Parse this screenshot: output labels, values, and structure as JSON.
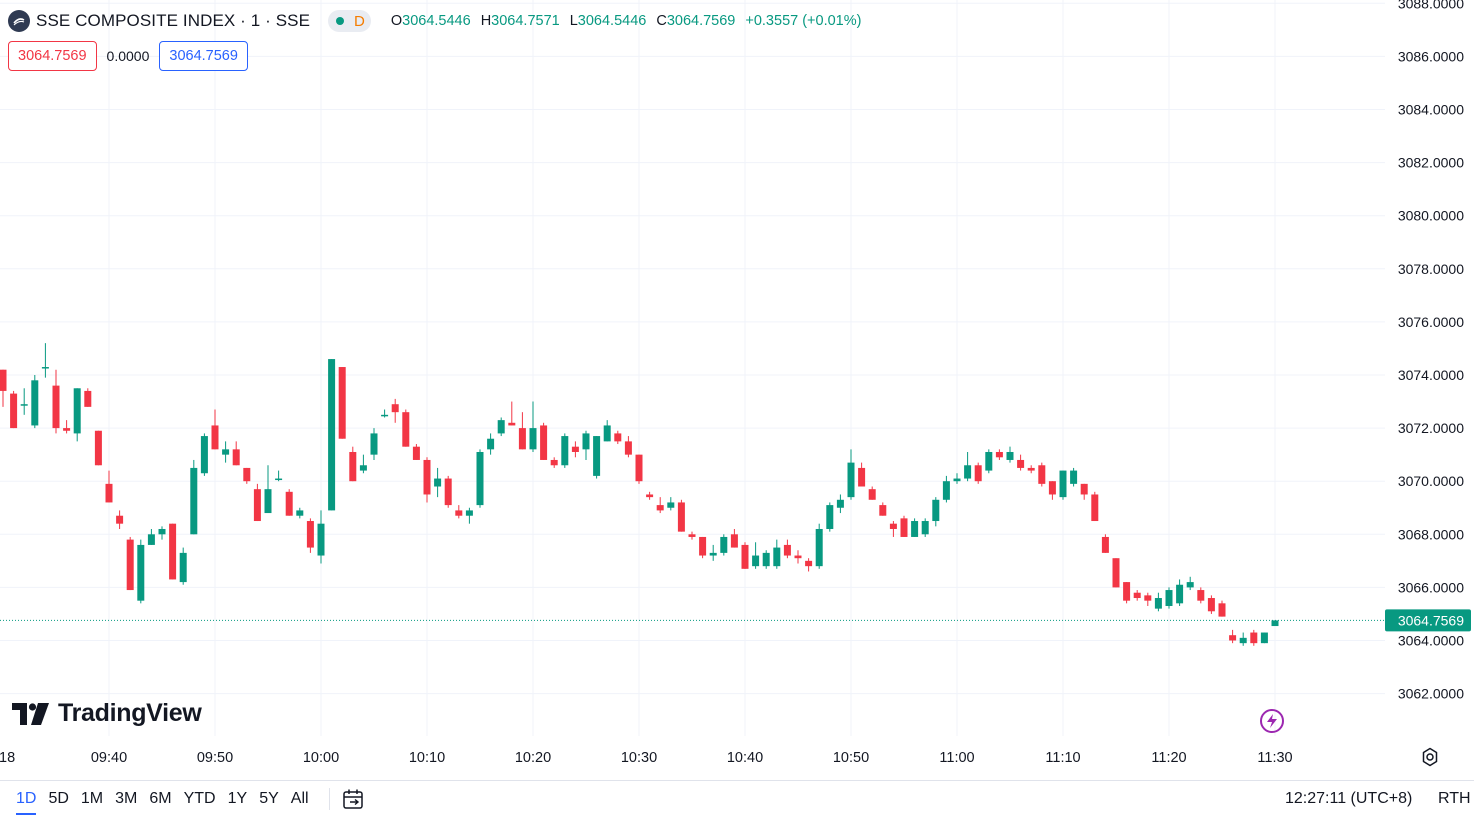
{
  "header": {
    "symbol_title": "SSE COMPOSITE INDEX · 1 · SSE",
    "status_letter": "D",
    "ohlc": [
      {
        "key": "O",
        "value": "3064.5446"
      },
      {
        "key": "H",
        "value": "3064.7571"
      },
      {
        "key": "L",
        "value": "3064.5446"
      },
      {
        "key": "C",
        "value": "3064.7569"
      }
    ],
    "change": "+0.3557 (+0.01%)"
  },
  "quote": {
    "bid": "3064.7569",
    "spread": "0.0000",
    "ask": "3064.7569"
  },
  "branding": {
    "watermark": "TradingView"
  },
  "toolbar": {
    "ranges": [
      "1D",
      "5D",
      "1M",
      "3M",
      "6M",
      "YTD",
      "1Y",
      "5Y",
      "All"
    ],
    "active_range": "1D",
    "clock": "12:27:11 (UTC+8)",
    "session": "RTH"
  },
  "colors": {
    "up": "#089981",
    "down": "#f23645",
    "grid": "#f0f3fa",
    "last_price_line": "#089981"
  },
  "icons": {
    "logo": "sse-logo-icon",
    "flash": "flash-icon",
    "settings": "settings-gear-icon",
    "calendar": "calendar-range-icon"
  },
  "chart_data": {
    "type": "candlestick",
    "interval_minutes": 1,
    "y_ticks": [
      "3062.0000",
      "3064.0000",
      "3066.0000",
      "3068.0000",
      "3070.0000",
      "3072.0000",
      "3074.0000",
      "3076.0000",
      "3078.0000",
      "3080.0000",
      "3082.0000",
      "3084.0000",
      "3086.0000",
      "3088.0000"
    ],
    "ylim": [
      3061.2,
      3088.2
    ],
    "x_ticks": [
      "18",
      "09:40",
      "09:50",
      "10:00",
      "10:10",
      "10:20",
      "10:30",
      "10:40",
      "10:50",
      "11:00",
      "11:10",
      "11:20",
      "11:30"
    ],
    "last_price": "3064.7569",
    "grid": true,
    "candles": [
      {
        "t": "09:30",
        "o": 3074.2,
        "h": 3074.2,
        "l": 3072.8,
        "c": 3073.4
      },
      {
        "t": "09:31",
        "o": 3073.3,
        "h": 3073.4,
        "l": 3072.0,
        "c": 3072.0
      },
      {
        "t": "09:32",
        "o": 3072.9,
        "h": 3073.5,
        "l": 3072.5,
        "c": 3072.9
      },
      {
        "t": "09:33",
        "o": 3072.1,
        "h": 3074.0,
        "l": 3072.0,
        "c": 3073.8
      },
      {
        "t": "09:34",
        "o": 3074.3,
        "h": 3075.2,
        "l": 3073.9,
        "c": 3074.3
      },
      {
        "t": "09:35",
        "o": 3073.6,
        "h": 3074.2,
        "l": 3071.8,
        "c": 3072.0
      },
      {
        "t": "09:36",
        "o": 3072.0,
        "h": 3072.3,
        "l": 3071.8,
        "c": 3071.9
      },
      {
        "t": "09:37",
        "o": 3071.8,
        "h": 3073.5,
        "l": 3071.5,
        "c": 3073.5
      },
      {
        "t": "09:38",
        "o": 3073.4,
        "h": 3073.5,
        "l": 3072.8,
        "c": 3072.8
      },
      {
        "t": "09:39",
        "o": 3071.9,
        "h": 3071.9,
        "l": 3070.6,
        "c": 3070.6
      },
      {
        "t": "09:40",
        "o": 3069.9,
        "h": 3070.4,
        "l": 3069.2,
        "c": 3069.2
      },
      {
        "t": "09:41",
        "o": 3068.7,
        "h": 3068.9,
        "l": 3068.2,
        "c": 3068.4
      },
      {
        "t": "09:42",
        "o": 3067.8,
        "h": 3067.9,
        "l": 3065.9,
        "c": 3065.9
      },
      {
        "t": "09:43",
        "o": 3065.5,
        "h": 3067.8,
        "l": 3065.4,
        "c": 3067.6
      },
      {
        "t": "09:44",
        "o": 3067.6,
        "h": 3068.2,
        "l": 3067.6,
        "c": 3068.0
      },
      {
        "t": "09:45",
        "o": 3068.0,
        "h": 3068.3,
        "l": 3067.8,
        "c": 3068.2
      },
      {
        "t": "09:46",
        "o": 3068.4,
        "h": 3068.4,
        "l": 3066.3,
        "c": 3066.3
      },
      {
        "t": "09:47",
        "o": 3066.2,
        "h": 3067.5,
        "l": 3066.1,
        "c": 3067.3
      },
      {
        "t": "09:48",
        "o": 3068.0,
        "h": 3070.8,
        "l": 3068.0,
        "c": 3070.5
      },
      {
        "t": "09:49",
        "o": 3070.3,
        "h": 3071.8,
        "l": 3070.2,
        "c": 3071.7
      },
      {
        "t": "09:50",
        "o": 3072.1,
        "h": 3072.7,
        "l": 3071.2,
        "c": 3071.2
      },
      {
        "t": "09:51",
        "o": 3071.0,
        "h": 3071.5,
        "l": 3070.7,
        "c": 3071.2
      },
      {
        "t": "09:52",
        "o": 3071.2,
        "h": 3071.5,
        "l": 3070.6,
        "c": 3070.6
      },
      {
        "t": "09:53",
        "o": 3070.5,
        "h": 3070.5,
        "l": 3069.9,
        "c": 3070.0
      },
      {
        "t": "09:54",
        "o": 3069.7,
        "h": 3069.9,
        "l": 3068.5,
        "c": 3068.5
      },
      {
        "t": "09:55",
        "o": 3068.8,
        "h": 3070.6,
        "l": 3068.8,
        "c": 3069.7
      },
      {
        "t": "09:56",
        "o": 3070.1,
        "h": 3070.4,
        "l": 3070.0,
        "c": 3070.1
      },
      {
        "t": "09:57",
        "o": 3069.6,
        "h": 3069.7,
        "l": 3068.7,
        "c": 3068.7
      },
      {
        "t": "09:58",
        "o": 3068.7,
        "h": 3069.0,
        "l": 3068.6,
        "c": 3068.9
      },
      {
        "t": "09:59",
        "o": 3068.5,
        "h": 3068.6,
        "l": 3067.3,
        "c": 3067.5
      },
      {
        "t": "10:00",
        "o": 3067.2,
        "h": 3068.9,
        "l": 3066.9,
        "c": 3068.4
      },
      {
        "t": "10:01",
        "o": 3068.9,
        "h": 3074.6,
        "l": 3068.9,
        "c": 3074.6
      },
      {
        "t": "10:02",
        "o": 3074.3,
        "h": 3074.3,
        "l": 3071.6,
        "c": 3071.6
      },
      {
        "t": "10:03",
        "o": 3071.1,
        "h": 3071.3,
        "l": 3070.0,
        "c": 3070.0
      },
      {
        "t": "10:04",
        "o": 3070.4,
        "h": 3071.0,
        "l": 3070.3,
        "c": 3070.6
      },
      {
        "t": "10:05",
        "o": 3071.0,
        "h": 3072.0,
        "l": 3070.8,
        "c": 3071.8
      },
      {
        "t": "10:06",
        "o": 3072.5,
        "h": 3072.7,
        "l": 3072.4,
        "c": 3072.5
      },
      {
        "t": "10:07",
        "o": 3072.9,
        "h": 3073.1,
        "l": 3072.2,
        "c": 3072.6
      },
      {
        "t": "10:08",
        "o": 3072.6,
        "h": 3072.7,
        "l": 3071.3,
        "c": 3071.3
      },
      {
        "t": "10:09",
        "o": 3071.3,
        "h": 3071.4,
        "l": 3070.8,
        "c": 3070.8
      },
      {
        "t": "10:10",
        "o": 3070.8,
        "h": 3070.9,
        "l": 3069.2,
        "c": 3069.5
      },
      {
        "t": "10:11",
        "o": 3069.8,
        "h": 3070.5,
        "l": 3069.4,
        "c": 3070.1
      },
      {
        "t": "10:12",
        "o": 3070.1,
        "h": 3070.2,
        "l": 3069.0,
        "c": 3069.1
      },
      {
        "t": "10:13",
        "o": 3068.9,
        "h": 3069.1,
        "l": 3068.6,
        "c": 3068.7
      },
      {
        "t": "10:14",
        "o": 3068.7,
        "h": 3069.0,
        "l": 3068.4,
        "c": 3068.9
      },
      {
        "t": "10:15",
        "o": 3069.1,
        "h": 3071.2,
        "l": 3069.0,
        "c": 3071.1
      },
      {
        "t": "10:16",
        "o": 3071.2,
        "h": 3071.8,
        "l": 3071.0,
        "c": 3071.6
      },
      {
        "t": "10:17",
        "o": 3071.8,
        "h": 3072.4,
        "l": 3071.7,
        "c": 3072.3
      },
      {
        "t": "10:18",
        "o": 3072.2,
        "h": 3073.0,
        "l": 3072.1,
        "c": 3072.1
      },
      {
        "t": "10:19",
        "o": 3072.0,
        "h": 3072.6,
        "l": 3071.2,
        "c": 3071.2
      },
      {
        "t": "10:20",
        "o": 3071.2,
        "h": 3073.0,
        "l": 3071.1,
        "c": 3072.0
      },
      {
        "t": "10:21",
        "o": 3072.1,
        "h": 3072.2,
        "l": 3070.8,
        "c": 3070.8
      },
      {
        "t": "10:22",
        "o": 3070.8,
        "h": 3070.9,
        "l": 3070.5,
        "c": 3070.6
      },
      {
        "t": "10:23",
        "o": 3070.6,
        "h": 3071.8,
        "l": 3070.5,
        "c": 3071.7
      },
      {
        "t": "10:24",
        "o": 3071.3,
        "h": 3071.5,
        "l": 3070.9,
        "c": 3071.1
      },
      {
        "t": "10:25",
        "o": 3071.2,
        "h": 3071.9,
        "l": 3070.8,
        "c": 3071.8
      },
      {
        "t": "10:26",
        "o": 3070.2,
        "h": 3071.7,
        "l": 3070.1,
        "c": 3071.7
      },
      {
        "t": "10:27",
        "o": 3071.5,
        "h": 3072.3,
        "l": 3071.5,
        "c": 3072.1
      },
      {
        "t": "10:28",
        "o": 3071.8,
        "h": 3071.9,
        "l": 3071.4,
        "c": 3071.5
      },
      {
        "t": "10:29",
        "o": 3071.5,
        "h": 3071.7,
        "l": 3070.9,
        "c": 3071.0
      },
      {
        "t": "10:30",
        "o": 3071.0,
        "h": 3071.0,
        "l": 3069.9,
        "c": 3070.0
      },
      {
        "t": "10:31",
        "o": 3069.5,
        "h": 3069.6,
        "l": 3069.3,
        "c": 3069.4
      },
      {
        "t": "10:32",
        "o": 3069.1,
        "h": 3069.4,
        "l": 3068.8,
        "c": 3068.9
      },
      {
        "t": "10:33",
        "o": 3069.0,
        "h": 3069.4,
        "l": 3068.9,
        "c": 3069.2
      },
      {
        "t": "10:34",
        "o": 3069.2,
        "h": 3069.3,
        "l": 3068.1,
        "c": 3068.1
      },
      {
        "t": "10:35",
        "o": 3068.0,
        "h": 3068.1,
        "l": 3067.8,
        "c": 3067.9
      },
      {
        "t": "10:36",
        "o": 3067.9,
        "h": 3067.9,
        "l": 3067.1,
        "c": 3067.2
      },
      {
        "t": "10:37",
        "o": 3067.2,
        "h": 3067.6,
        "l": 3067.0,
        "c": 3067.3
      },
      {
        "t": "10:38",
        "o": 3067.3,
        "h": 3068.0,
        "l": 3067.2,
        "c": 3067.9
      },
      {
        "t": "10:39",
        "o": 3068.0,
        "h": 3068.2,
        "l": 3067.5,
        "c": 3067.5
      },
      {
        "t": "10:40",
        "o": 3067.6,
        "h": 3067.7,
        "l": 3066.7,
        "c": 3066.7
      },
      {
        "t": "10:41",
        "o": 3066.8,
        "h": 3067.7,
        "l": 3066.7,
        "c": 3067.2
      },
      {
        "t": "10:42",
        "o": 3066.8,
        "h": 3067.4,
        "l": 3066.7,
        "c": 3067.3
      },
      {
        "t": "10:43",
        "o": 3066.8,
        "h": 3067.8,
        "l": 3066.7,
        "c": 3067.5
      },
      {
        "t": "10:44",
        "o": 3067.6,
        "h": 3067.8,
        "l": 3067.1,
        "c": 3067.2
      },
      {
        "t": "10:45",
        "o": 3067.2,
        "h": 3067.4,
        "l": 3066.9,
        "c": 3067.1
      },
      {
        "t": "10:46",
        "o": 3067.0,
        "h": 3067.1,
        "l": 3066.6,
        "c": 3066.8
      },
      {
        "t": "10:47",
        "o": 3066.8,
        "h": 3068.4,
        "l": 3066.7,
        "c": 3068.2
      },
      {
        "t": "10:48",
        "o": 3068.2,
        "h": 3069.2,
        "l": 3068.1,
        "c": 3069.1
      },
      {
        "t": "10:49",
        "o": 3069.0,
        "h": 3069.5,
        "l": 3068.8,
        "c": 3069.3
      },
      {
        "t": "10:50",
        "o": 3069.4,
        "h": 3071.2,
        "l": 3069.3,
        "c": 3070.7
      },
      {
        "t": "10:51",
        "o": 3070.5,
        "h": 3070.7,
        "l": 3069.8,
        "c": 3069.8
      },
      {
        "t": "10:52",
        "o": 3069.7,
        "h": 3069.8,
        "l": 3069.3,
        "c": 3069.3
      },
      {
        "t": "10:53",
        "o": 3069.1,
        "h": 3069.2,
        "l": 3068.7,
        "c": 3068.7
      },
      {
        "t": "10:54",
        "o": 3068.4,
        "h": 3068.5,
        "l": 3067.9,
        "c": 3068.2
      },
      {
        "t": "10:55",
        "o": 3068.6,
        "h": 3068.7,
        "l": 3067.9,
        "c": 3067.9
      },
      {
        "t": "10:56",
        "o": 3067.9,
        "h": 3068.6,
        "l": 3067.9,
        "c": 3068.5
      },
      {
        "t": "10:57",
        "o": 3068.0,
        "h": 3068.6,
        "l": 3067.9,
        "c": 3068.5
      },
      {
        "t": "10:58",
        "o": 3068.5,
        "h": 3069.4,
        "l": 3068.3,
        "c": 3069.3
      },
      {
        "t": "10:59",
        "o": 3069.3,
        "h": 3070.2,
        "l": 3069.2,
        "c": 3070.0
      },
      {
        "t": "11:00",
        "o": 3070.0,
        "h": 3070.3,
        "l": 3069.9,
        "c": 3070.1
      },
      {
        "t": "11:01",
        "o": 3070.1,
        "h": 3071.1,
        "l": 3070.0,
        "c": 3070.6
      },
      {
        "t": "11:02",
        "o": 3070.6,
        "h": 3070.7,
        "l": 3069.9,
        "c": 3070.0
      },
      {
        "t": "11:03",
        "o": 3070.4,
        "h": 3071.2,
        "l": 3070.3,
        "c": 3071.1
      },
      {
        "t": "11:04",
        "o": 3071.1,
        "h": 3071.2,
        "l": 3070.8,
        "c": 3070.9
      },
      {
        "t": "11:05",
        "o": 3070.8,
        "h": 3071.3,
        "l": 3070.7,
        "c": 3071.1
      },
      {
        "t": "11:06",
        "o": 3070.8,
        "h": 3071.0,
        "l": 3070.4,
        "c": 3070.5
      },
      {
        "t": "11:07",
        "o": 3070.5,
        "h": 3070.6,
        "l": 3070.3,
        "c": 3070.4
      },
      {
        "t": "11:08",
        "o": 3070.6,
        "h": 3070.7,
        "l": 3069.8,
        "c": 3069.9
      },
      {
        "t": "11:09",
        "o": 3070.0,
        "h": 3070.0,
        "l": 3069.3,
        "c": 3069.5
      },
      {
        "t": "11:10",
        "o": 3069.4,
        "h": 3070.4,
        "l": 3069.3,
        "c": 3070.4
      },
      {
        "t": "11:11",
        "o": 3069.9,
        "h": 3070.5,
        "l": 3069.8,
        "c": 3070.4
      },
      {
        "t": "11:12",
        "o": 3069.9,
        "h": 3069.9,
        "l": 3069.3,
        "c": 3069.5
      },
      {
        "t": "11:13",
        "o": 3069.5,
        "h": 3069.6,
        "l": 3068.5,
        "c": 3068.5
      },
      {
        "t": "11:14",
        "o": 3067.9,
        "h": 3068.0,
        "l": 3067.3,
        "c": 3067.3
      },
      {
        "t": "11:15",
        "o": 3067.1,
        "h": 3067.1,
        "l": 3066.0,
        "c": 3066.0
      },
      {
        "t": "11:16",
        "o": 3066.2,
        "h": 3066.2,
        "l": 3065.4,
        "c": 3065.5
      },
      {
        "t": "11:17",
        "o": 3065.8,
        "h": 3065.9,
        "l": 3065.5,
        "c": 3065.6
      },
      {
        "t": "11:18",
        "o": 3065.7,
        "h": 3065.8,
        "l": 3065.3,
        "c": 3065.5
      },
      {
        "t": "11:19",
        "o": 3065.2,
        "h": 3065.8,
        "l": 3065.1,
        "c": 3065.6
      },
      {
        "t": "11:20",
        "o": 3065.3,
        "h": 3066.0,
        "l": 3065.2,
        "c": 3065.9
      },
      {
        "t": "11:21",
        "o": 3065.4,
        "h": 3066.3,
        "l": 3065.3,
        "c": 3066.1
      },
      {
        "t": "11:22",
        "o": 3066.0,
        "h": 3066.4,
        "l": 3065.9,
        "c": 3066.2
      },
      {
        "t": "11:23",
        "o": 3065.9,
        "h": 3066.0,
        "l": 3065.4,
        "c": 3065.5
      },
      {
        "t": "11:24",
        "o": 3065.6,
        "h": 3065.7,
        "l": 3065.0,
        "c": 3065.1
      },
      {
        "t": "11:25",
        "o": 3065.4,
        "h": 3065.5,
        "l": 3064.9,
        "c": 3064.9
      },
      {
        "t": "11:26",
        "o": 3064.2,
        "h": 3064.4,
        "l": 3063.9,
        "c": 3064.0
      },
      {
        "t": "11:27",
        "o": 3063.9,
        "h": 3064.3,
        "l": 3063.8,
        "c": 3064.1
      },
      {
        "t": "11:28",
        "o": 3064.3,
        "h": 3064.4,
        "l": 3063.8,
        "c": 3063.9
      },
      {
        "t": "11:29",
        "o": 3063.9,
        "h": 3064.3,
        "l": 3063.9,
        "c": 3064.3
      },
      {
        "t": "11:30",
        "o": 3064.5446,
        "h": 3064.7571,
        "l": 3064.5446,
        "c": 3064.7569
      }
    ]
  }
}
